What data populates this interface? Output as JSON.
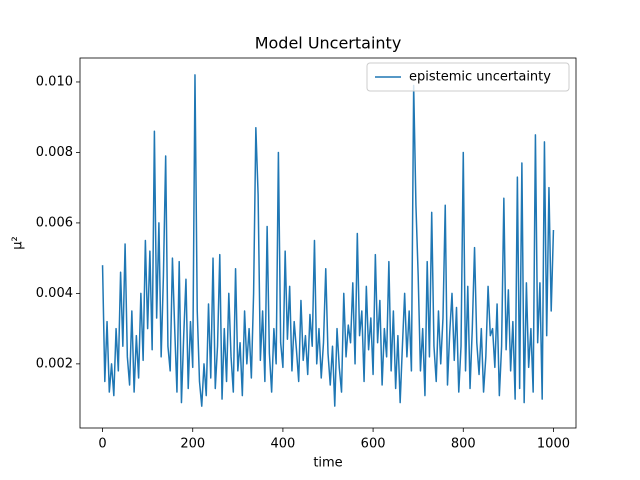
{
  "chart_data": {
    "type": "line",
    "title": "Model Uncertainty",
    "x_label": "time",
    "y_label": "μ²",
    "legend": "upper right",
    "grid": false,
    "xlim": [
      -50,
      1050
    ],
    "ylim": [
      0.00018,
      0.01068
    ],
    "xticks": [
      0,
      200,
      400,
      600,
      800,
      1000
    ],
    "yticks": [
      0.002,
      0.004,
      0.006,
      0.008,
      {
        "value": 0.01,
        "label": "0.010"
      }
    ],
    "x": [
      0,
      5,
      10,
      15,
      20,
      25,
      30,
      35,
      40,
      45,
      50,
      55,
      60,
      65,
      70,
      75,
      80,
      85,
      90,
      95,
      100,
      105,
      110,
      115,
      120,
      125,
      130,
      135,
      140,
      145,
      150,
      155,
      160,
      165,
      170,
      175,
      180,
      185,
      190,
      195,
      200,
      205,
      210,
      215,
      220,
      225,
      230,
      235,
      240,
      245,
      250,
      255,
      260,
      265,
      270,
      275,
      280,
      285,
      290,
      295,
      300,
      305,
      310,
      315,
      320,
      325,
      330,
      335,
      340,
      345,
      350,
      355,
      360,
      365,
      370,
      375,
      380,
      385,
      390,
      395,
      400,
      405,
      410,
      415,
      420,
      425,
      430,
      435,
      440,
      445,
      450,
      455,
      460,
      465,
      470,
      475,
      480,
      485,
      490,
      495,
      500,
      505,
      510,
      515,
      520,
      525,
      530,
      535,
      540,
      545,
      550,
      555,
      560,
      565,
      570,
      575,
      580,
      585,
      590,
      595,
      600,
      605,
      610,
      615,
      620,
      625,
      630,
      635,
      640,
      645,
      650,
      655,
      660,
      665,
      670,
      675,
      680,
      685,
      690,
      695,
      700,
      705,
      710,
      715,
      720,
      725,
      730,
      735,
      740,
      745,
      750,
      755,
      760,
      765,
      770,
      775,
      780,
      785,
      790,
      795,
      800,
      805,
      810,
      815,
      820,
      825,
      830,
      835,
      840,
      845,
      850,
      855,
      860,
      865,
      870,
      875,
      880,
      885,
      890,
      895,
      900,
      905,
      910,
      915,
      920,
      925,
      930,
      935,
      940,
      945,
      950,
      955,
      960,
      965,
      970,
      975,
      980,
      985,
      990,
      995,
      1000
    ],
    "series": [
      {
        "name": "epistemic uncertainty",
        "color": "#1f77b4",
        "values": [
          0.0048,
          0.0015,
          0.0032,
          0.0012,
          0.002,
          0.0011,
          0.003,
          0.0018,
          0.0046,
          0.0025,
          0.0054,
          0.0022,
          0.0014,
          0.0035,
          0.0012,
          0.0028,
          0.0016,
          0.004,
          0.0021,
          0.0055,
          0.003,
          0.0052,
          0.0024,
          0.0086,
          0.0033,
          0.006,
          0.0022,
          0.0045,
          0.0079,
          0.0025,
          0.0018,
          0.005,
          0.003,
          0.0012,
          0.0049,
          0.0009,
          0.0028,
          0.0044,
          0.0013,
          0.0032,
          0.0019,
          0.0102,
          0.0035,
          0.0015,
          0.0008,
          0.002,
          0.0011,
          0.0037,
          0.0016,
          0.005,
          0.0013,
          0.0025,
          0.0051,
          0.001,
          0.003,
          0.0015,
          0.004,
          0.0022,
          0.0012,
          0.0047,
          0.0018,
          0.0026,
          0.0011,
          0.0035,
          0.002,
          0.003,
          0.0016,
          0.004,
          0.0087,
          0.0068,
          0.0021,
          0.0035,
          0.0015,
          0.0059,
          0.0023,
          0.0012,
          0.003,
          0.002,
          0.008,
          0.0026,
          0.0019,
          0.0052,
          0.0027,
          0.0042,
          0.0018,
          0.0032,
          0.0024,
          0.0015,
          0.0038,
          0.0021,
          0.0028,
          0.0017,
          0.0034,
          0.0025,
          0.0055,
          0.002,
          0.003,
          0.0016,
          0.0026,
          0.0047,
          0.0023,
          0.0014,
          0.0025,
          0.0008,
          0.003,
          0.0019,
          0.0012,
          0.004,
          0.0022,
          0.0031,
          0.0026,
          0.0043,
          0.002,
          0.0057,
          0.0028,
          0.0035,
          0.0015,
          0.0042,
          0.0024,
          0.0033,
          0.0017,
          0.0051,
          0.0026,
          0.0038,
          0.0014,
          0.003,
          0.0022,
          0.0049,
          0.0018,
          0.0035,
          0.0013,
          0.0028,
          0.0009,
          0.0025,
          0.004,
          0.0022,
          0.0035,
          0.0018,
          0.0099,
          0.0065,
          0.0045,
          0.0018,
          0.003,
          0.0011,
          0.0049,
          0.0022,
          0.0063,
          0.0025,
          0.0015,
          0.0035,
          0.002,
          0.0033,
          0.0065,
          0.0014,
          0.0029,
          0.004,
          0.0021,
          0.0036,
          0.0012,
          0.0025,
          0.008,
          0.0018,
          0.0042,
          0.0013,
          0.003,
          0.0053,
          0.0026,
          0.0017,
          0.003,
          0.0012,
          0.0022,
          0.0042,
          0.0028,
          0.003,
          0.0019,
          0.0037,
          0.0011,
          0.0025,
          0.0067,
          0.0024,
          0.0041,
          0.0018,
          0.0032,
          0.001,
          0.0073,
          0.0013,
          0.0077,
          0.0009,
          0.0043,
          0.0019,
          0.003,
          0.0012,
          0.0085,
          0.0026,
          0.0043,
          0.001,
          0.0083,
          0.0028,
          0.007,
          0.0035,
          0.0058
        ]
      }
    ]
  }
}
